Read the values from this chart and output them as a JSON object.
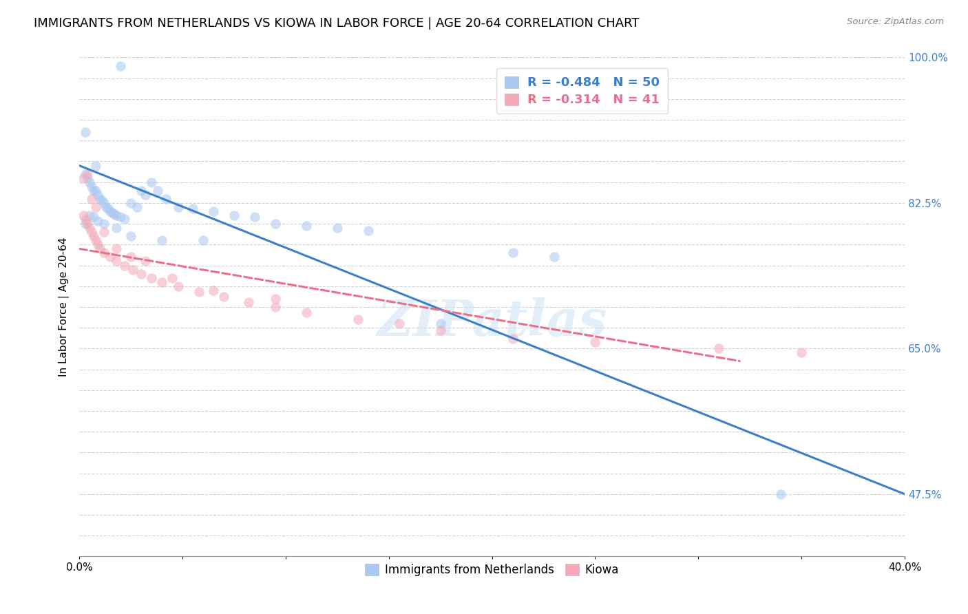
{
  "title": "IMMIGRANTS FROM NETHERLANDS VS KIOWA IN LABOR FORCE | AGE 20-64 CORRELATION CHART",
  "source": "Source: ZipAtlas.com",
  "ylabel": "In Labor Force | Age 20-64",
  "xlim": [
    0.0,
    0.4
  ],
  "ylim": [
    0.4,
    1.0
  ],
  "xticks": [
    0.0,
    0.05,
    0.1,
    0.15,
    0.2,
    0.25,
    0.3,
    0.35,
    0.4
  ],
  "blue_scatter_x": [
    0.003,
    0.004,
    0.005,
    0.006,
    0.007,
    0.008,
    0.009,
    0.01,
    0.011,
    0.012,
    0.013,
    0.014,
    0.015,
    0.016,
    0.017,
    0.018,
    0.02,
    0.022,
    0.025,
    0.028,
    0.03,
    0.032,
    0.035,
    0.038,
    0.042,
    0.048,
    0.055,
    0.065,
    0.075,
    0.085,
    0.095,
    0.11,
    0.125,
    0.14,
    0.003,
    0.005,
    0.007,
    0.009,
    0.012,
    0.018,
    0.025,
    0.04,
    0.06,
    0.175,
    0.34,
    0.21,
    0.23,
    0.003,
    0.008,
    0.02
  ],
  "blue_scatter_y": [
    0.86,
    0.855,
    0.85,
    0.845,
    0.84,
    0.84,
    0.835,
    0.83,
    0.828,
    0.825,
    0.82,
    0.818,
    0.815,
    0.813,
    0.812,
    0.81,
    0.808,
    0.806,
    0.825,
    0.82,
    0.84,
    0.835,
    0.85,
    0.84,
    0.83,
    0.82,
    0.818,
    0.815,
    0.81,
    0.808,
    0.8,
    0.798,
    0.795,
    0.792,
    0.8,
    0.81,
    0.808,
    0.803,
    0.8,
    0.795,
    0.785,
    0.78,
    0.78,
    0.68,
    0.475,
    0.765,
    0.76,
    0.91,
    0.87,
    0.99
  ],
  "pink_scatter_x": [
    0.002,
    0.003,
    0.004,
    0.005,
    0.006,
    0.007,
    0.008,
    0.009,
    0.01,
    0.012,
    0.015,
    0.018,
    0.022,
    0.026,
    0.03,
    0.035,
    0.04,
    0.048,
    0.058,
    0.07,
    0.082,
    0.095,
    0.11,
    0.135,
    0.155,
    0.175,
    0.21,
    0.25,
    0.31,
    0.35,
    0.002,
    0.004,
    0.006,
    0.008,
    0.012,
    0.018,
    0.025,
    0.032,
    0.045,
    0.065,
    0.095
  ],
  "pink_scatter_y": [
    0.81,
    0.805,
    0.8,
    0.795,
    0.79,
    0.785,
    0.78,
    0.775,
    0.77,
    0.765,
    0.76,
    0.755,
    0.75,
    0.745,
    0.74,
    0.735,
    0.73,
    0.725,
    0.718,
    0.712,
    0.706,
    0.7,
    0.693,
    0.685,
    0.68,
    0.672,
    0.662,
    0.658,
    0.65,
    0.645,
    0.855,
    0.86,
    0.83,
    0.82,
    0.79,
    0.77,
    0.76,
    0.755,
    0.735,
    0.72,
    0.71
  ],
  "blue_line_x": [
    0.0,
    0.4
  ],
  "blue_line_y": [
    0.87,
    0.475
  ],
  "pink_line_x": [
    0.0,
    0.32
  ],
  "pink_line_y": [
    0.77,
    0.635
  ],
  "blue_color": "#A8C8F0",
  "pink_color": "#F4A8B8",
  "blue_line_color": "#3D7EC8",
  "pink_line_color": "#E8708A",
  "blue_R": "-0.484",
  "blue_N": "50",
  "pink_R": "-0.314",
  "pink_N": "41",
  "watermark": "ZIPatlas",
  "grid_color": "#cccccc",
  "title_fontsize": 13,
  "axis_label_fontsize": 11,
  "tick_fontsize": 11,
  "legend_fontsize": 12,
  "scatter_size": 110,
  "scatter_alpha": 0.55,
  "line_width": 2.2
}
